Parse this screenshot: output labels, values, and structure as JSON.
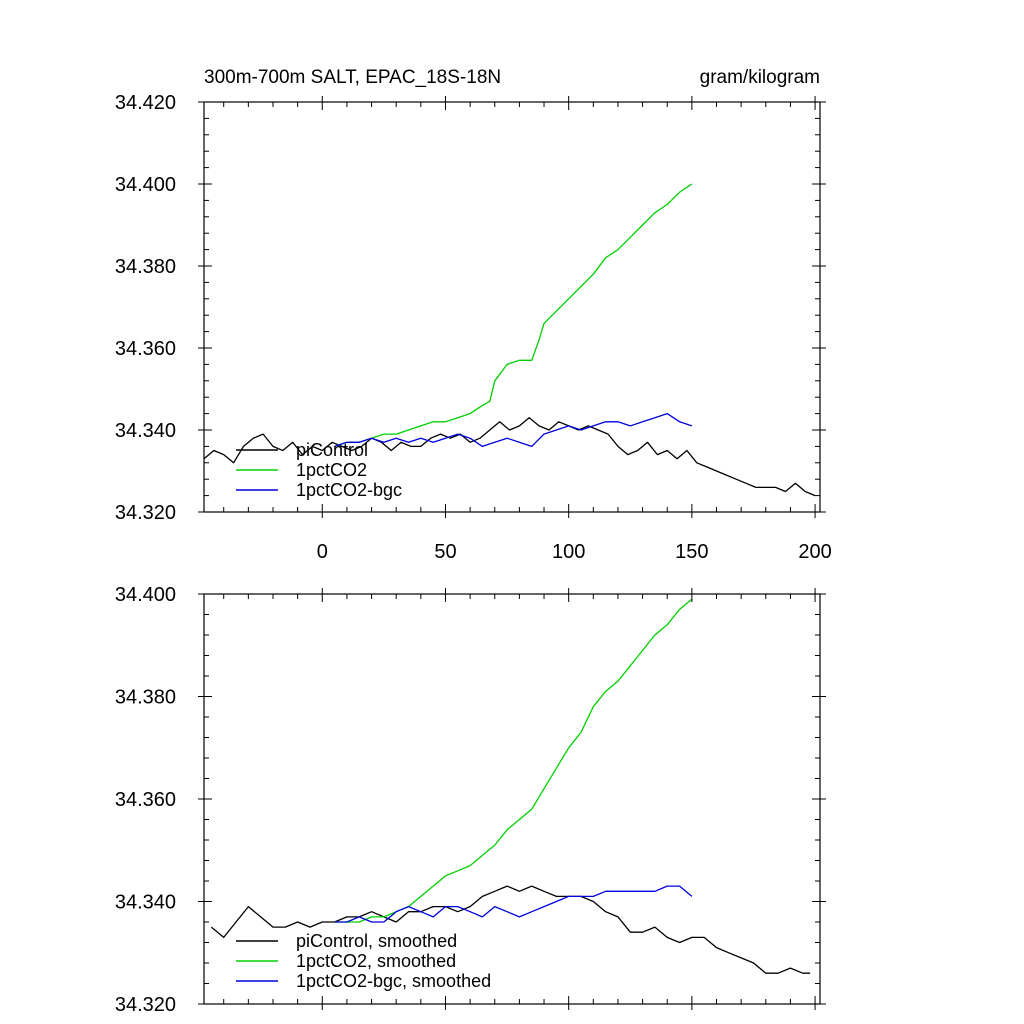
{
  "chart_data": [
    {
      "type": "line",
      "title": "300m-700m SALT, EPAC_18S-18N",
      "units": "gram/kilogram",
      "xlim": [
        -48,
        202
      ],
      "ylim": [
        34.32,
        34.42
      ],
      "xticks": [
        "0",
        "50",
        "100",
        "150",
        "200"
      ],
      "yticks": [
        "34.320",
        "34.340",
        "34.360",
        "34.380",
        "34.400",
        "34.420"
      ],
      "legend_position": "lower-left",
      "series": [
        {
          "name": "piControl",
          "color": "#000000",
          "x": [
            -48,
            -44,
            -40,
            -36,
            -32,
            -28,
            -24,
            -20,
            -16,
            -12,
            -8,
            -4,
            0,
            4,
            8,
            12,
            16,
            20,
            24,
            28,
            32,
            36,
            40,
            44,
            48,
            52,
            56,
            60,
            64,
            68,
            72,
            76,
            80,
            84,
            88,
            92,
            96,
            100,
            104,
            108,
            112,
            116,
            120,
            124,
            128,
            132,
            136,
            140,
            144,
            148,
            152,
            156,
            160,
            164,
            168,
            172,
            176,
            180,
            184,
            188,
            192,
            196,
            200
          ],
          "y": [
            34.333,
            34.335,
            34.334,
            34.332,
            34.336,
            34.338,
            34.339,
            34.336,
            34.335,
            34.337,
            34.334,
            34.336,
            34.335,
            34.337,
            34.336,
            34.335,
            34.336,
            34.338,
            34.337,
            34.335,
            34.337,
            34.336,
            34.336,
            34.338,
            34.339,
            34.338,
            34.339,
            34.337,
            34.338,
            34.34,
            34.342,
            34.34,
            34.341,
            34.343,
            34.341,
            34.34,
            34.342,
            34.341,
            34.34,
            34.341,
            34.34,
            34.339,
            34.336,
            34.334,
            34.335,
            34.337,
            34.334,
            34.335,
            34.333,
            34.335,
            34.332,
            34.331,
            34.33,
            34.329,
            34.328,
            34.327,
            34.326,
            34.326,
            34.326,
            34.325,
            34.327,
            34.325,
            34.324
          ]
        },
        {
          "name": "1pctCO2",
          "color": "#00d000",
          "x": [
            5,
            10,
            15,
            20,
            25,
            30,
            35,
            40,
            45,
            50,
            55,
            60,
            65,
            68,
            70,
            75,
            80,
            85,
            88,
            90,
            95,
            100,
            105,
            110,
            115,
            120,
            125,
            130,
            135,
            140,
            145,
            150
          ],
          "y": [
            34.336,
            34.337,
            34.337,
            34.338,
            34.339,
            34.339,
            34.34,
            34.341,
            34.342,
            34.342,
            34.343,
            34.344,
            34.346,
            34.347,
            34.352,
            34.356,
            34.357,
            34.357,
            34.362,
            34.366,
            34.369,
            34.372,
            34.375,
            34.378,
            34.382,
            34.384,
            34.387,
            34.39,
            34.393,
            34.395,
            34.398,
            34.4
          ]
        },
        {
          "name": "1pctCO2-bgc",
          "color": "#0000e0",
          "x": [
            5,
            10,
            15,
            20,
            25,
            30,
            35,
            40,
            45,
            50,
            55,
            60,
            65,
            70,
            75,
            80,
            85,
            90,
            95,
            100,
            105,
            110,
            115,
            120,
            125,
            130,
            135,
            140,
            145,
            150
          ],
          "y": [
            34.336,
            34.337,
            34.337,
            34.338,
            34.337,
            34.338,
            34.337,
            34.338,
            34.337,
            34.338,
            34.339,
            34.338,
            34.336,
            34.337,
            34.338,
            34.337,
            34.336,
            34.339,
            34.34,
            34.341,
            34.34,
            34.341,
            34.342,
            34.342,
            34.341,
            34.342,
            34.343,
            34.344,
            34.342,
            34.341
          ]
        }
      ]
    },
    {
      "type": "line",
      "title": "",
      "xlim": [
        -48,
        202
      ],
      "ylim": [
        34.32,
        34.4
      ],
      "yticks": [
        "34.320",
        "34.340",
        "34.360",
        "34.380",
        "34.400"
      ],
      "legend_position": "lower-left",
      "series": [
        {
          "name": "piControl, smoothed",
          "color": "#000000",
          "x": [
            -45,
            -40,
            -35,
            -30,
            -25,
            -20,
            -15,
            -10,
            -5,
            0,
            5,
            10,
            15,
            20,
            25,
            30,
            35,
            40,
            45,
            50,
            55,
            60,
            65,
            70,
            75,
            80,
            85,
            90,
            95,
            100,
            105,
            110,
            115,
            120,
            125,
            130,
            135,
            140,
            145,
            150,
            155,
            160,
            165,
            170,
            175,
            180,
            185,
            190,
            195,
            198
          ],
          "y": [
            34.335,
            34.333,
            34.336,
            34.339,
            34.337,
            34.335,
            34.335,
            34.336,
            34.335,
            34.336,
            34.336,
            34.337,
            34.337,
            34.338,
            34.337,
            34.336,
            34.338,
            34.338,
            34.339,
            34.339,
            34.338,
            34.339,
            34.341,
            34.342,
            34.343,
            34.342,
            34.343,
            34.342,
            34.341,
            34.341,
            34.341,
            34.34,
            34.338,
            34.337,
            34.334,
            34.334,
            34.335,
            34.333,
            34.332,
            34.333,
            34.333,
            34.331,
            34.33,
            34.329,
            34.328,
            34.326,
            34.326,
            34.327,
            34.326,
            34.326
          ]
        },
        {
          "name": "1pctCO2, smoothed",
          "color": "#00d000",
          "x": [
            5,
            10,
            15,
            20,
            25,
            30,
            35,
            40,
            45,
            50,
            55,
            60,
            65,
            70,
            75,
            80,
            85,
            90,
            95,
            100,
            105,
            110,
            115,
            120,
            125,
            130,
            135,
            140,
            145,
            150
          ],
          "y": [
            34.336,
            34.336,
            34.336,
            34.337,
            34.337,
            34.338,
            34.339,
            34.341,
            34.343,
            34.345,
            34.346,
            34.347,
            34.349,
            34.351,
            34.354,
            34.356,
            34.358,
            34.362,
            34.366,
            34.37,
            34.373,
            34.378,
            34.381,
            34.383,
            34.386,
            34.389,
            34.392,
            34.394,
            34.397,
            34.399
          ]
        },
        {
          "name": "1pctCO2-bgc, smoothed",
          "color": "#0000e0",
          "x": [
            5,
            10,
            15,
            20,
            25,
            30,
            35,
            40,
            45,
            50,
            55,
            60,
            65,
            70,
            75,
            80,
            85,
            90,
            95,
            100,
            105,
            110,
            115,
            120,
            125,
            130,
            135,
            140,
            145,
            150
          ],
          "y": [
            34.336,
            34.336,
            34.337,
            34.336,
            34.336,
            34.338,
            34.339,
            34.338,
            34.337,
            34.339,
            34.339,
            34.338,
            34.337,
            34.339,
            34.338,
            34.337,
            34.338,
            34.339,
            34.34,
            34.341,
            34.341,
            34.341,
            34.342,
            34.342,
            34.342,
            34.342,
            34.342,
            34.343,
            34.343,
            34.341
          ]
        }
      ]
    }
  ]
}
